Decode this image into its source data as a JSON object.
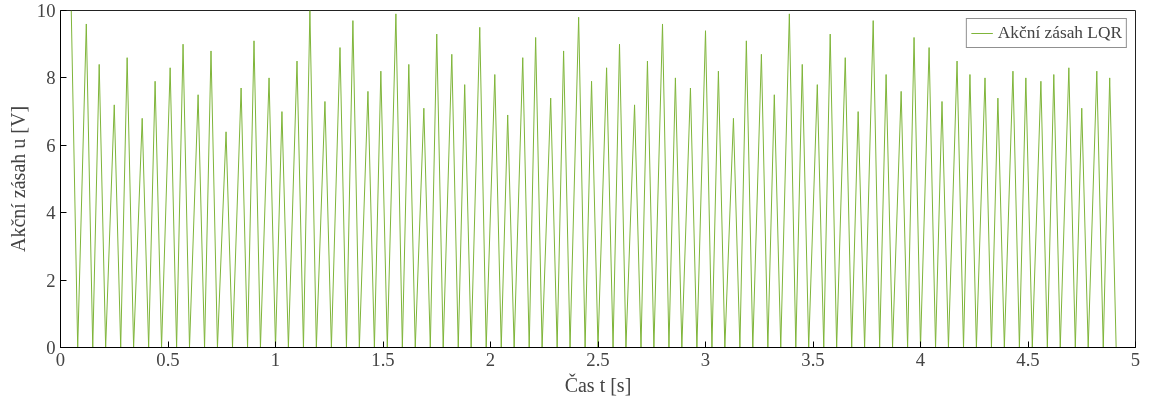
{
  "chart_data": {
    "type": "line",
    "xlabel": "Čas t [s]",
    "ylabel": "Akční zásah u [V]",
    "xlim": [
      0,
      5
    ],
    "xticks": [
      0,
      0.5,
      1,
      1.5,
      2,
      2.5,
      3,
      3.5,
      4,
      4.5,
      5
    ],
    "ylim": [
      0,
      10
    ],
    "yticks": [
      0,
      2,
      4,
      6,
      8,
      10
    ],
    "grid": false,
    "legend": "top right",
    "marker": "none",
    "line_style": "solid",
    "series": [
      {
        "name": "Akční zásah LQR",
        "color": "#7fb53a",
        "x": [
          0.05,
          0.08,
          0.12,
          0.15,
          0.18,
          0.21,
          0.25,
          0.28,
          0.31,
          0.34,
          0.38,
          0.41,
          0.44,
          0.47,
          0.51,
          0.54,
          0.57,
          0.6,
          0.64,
          0.67,
          0.7,
          0.73,
          0.77,
          0.8,
          0.84,
          0.87,
          0.9,
          0.93,
          0.97,
          1.0,
          1.03,
          1.06,
          1.1,
          1.13,
          1.16,
          1.19,
          1.23,
          1.26,
          1.3,
          1.33,
          1.36,
          1.39,
          1.43,
          1.46,
          1.49,
          1.52,
          1.56,
          1.59,
          1.62,
          1.65,
          1.69,
          1.72,
          1.75,
          1.78,
          1.82,
          1.85,
          1.88,
          1.91,
          1.95,
          1.98,
          2.02,
          2.05,
          2.08,
          2.11,
          2.15,
          2.18,
          2.21,
          2.24,
          2.28,
          2.31,
          2.34,
          2.37,
          2.41,
          2.44,
          2.47,
          2.5,
          2.54,
          2.57,
          2.6,
          2.63,
          2.67,
          2.7,
          2.73,
          2.76,
          2.8,
          2.83,
          2.86,
          2.89,
          2.93,
          2.96,
          3.0,
          3.03,
          3.06,
          3.09,
          3.13,
          3.16,
          3.19,
          3.22,
          3.26,
          3.29,
          3.32,
          3.35,
          3.39,
          3.42,
          3.45,
          3.48,
          3.52,
          3.55,
          3.58,
          3.61,
          3.65,
          3.68,
          3.71,
          3.74,
          3.78,
          3.81,
          3.84,
          3.87,
          3.91,
          3.94,
          3.97,
          4.0,
          4.04,
          4.07,
          4.1,
          4.13,
          4.17,
          4.2,
          4.23,
          4.26,
          4.3,
          4.33,
          4.36,
          4.39,
          4.43,
          4.46,
          4.49,
          4.52,
          4.56,
          4.59,
          4.62,
          4.65,
          4.69,
          4.72,
          4.75,
          4.78,
          4.82,
          4.85,
          4.88,
          4.91
        ],
        "values": [
          10,
          0,
          9.6,
          0,
          8.4,
          0,
          7.2,
          0,
          8.6,
          0,
          6.8,
          0,
          7.9,
          0,
          8.3,
          0,
          9.0,
          0,
          7.5,
          0,
          8.8,
          0,
          6.4,
          0,
          7.7,
          0,
          9.1,
          0,
          8.0,
          0,
          7.0,
          0,
          8.5,
          0,
          10,
          0,
          7.3,
          0,
          8.9,
          0,
          9.7,
          0,
          7.6,
          0,
          8.2,
          0,
          9.9,
          0,
          8.4,
          0,
          7.1,
          0,
          9.3,
          0,
          8.7,
          0,
          7.8,
          0,
          9.5,
          0,
          8.1,
          0,
          6.9,
          0,
          8.6,
          0,
          9.2,
          0,
          7.4,
          0,
          8.8,
          0,
          9.8,
          0,
          7.9,
          0,
          8.3,
          0,
          9.0,
          0,
          7.2,
          0,
          8.5,
          0,
          9.6,
          0,
          8.0,
          0,
          7.7,
          0,
          9.4,
          0,
          8.2,
          0,
          6.8,
          0,
          9.1,
          0,
          8.7,
          0,
          7.5,
          0,
          9.9,
          0,
          8.4,
          0,
          7.8,
          0,
          9.3,
          0,
          8.6,
          0,
          7.0,
          0,
          9.7,
          0,
          8.1,
          0,
          7.6,
          0,
          9.2,
          0,
          8.9,
          0,
          7.3,
          0,
          8.5,
          0,
          8.1,
          0,
          8.0,
          0,
          7.4,
          0,
          8.2,
          0,
          8.0,
          0,
          7.9,
          0,
          8.1,
          0,
          8.3,
          0,
          7.1,
          0,
          8.2,
          0,
          8.0,
          0
        ]
      }
    ]
  }
}
